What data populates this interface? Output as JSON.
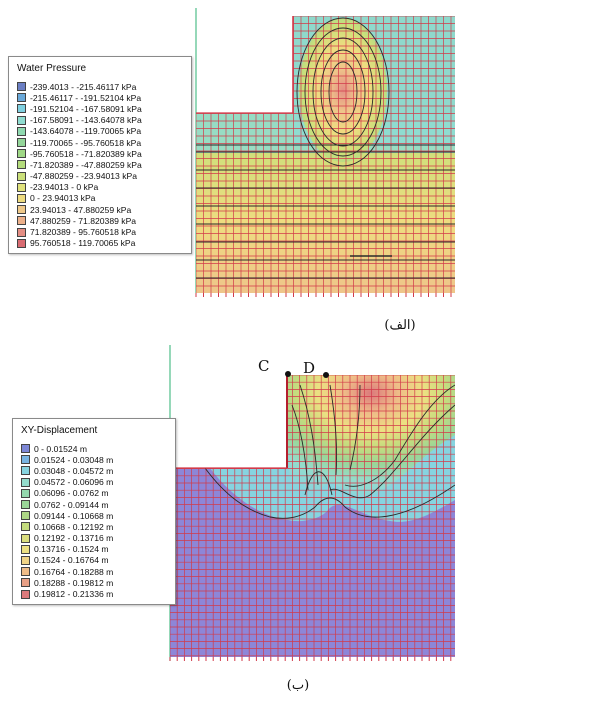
{
  "panel_a": {
    "legend_title": "Water Pressure",
    "legend": [
      {
        "label": "-239.4013 - -215.46117 kPa",
        "color": "#6b7fc4"
      },
      {
        "label": "-215.46117 - -191.52104 kPa",
        "color": "#6aa9da"
      },
      {
        "label": "-191.52104 - -167.58091 kPa",
        "color": "#7fd0e0"
      },
      {
        "label": "-167.58091 - -143.64078 kPa",
        "color": "#8fdcd0"
      },
      {
        "label": "-143.64078 - -119.70065 kPa",
        "color": "#8fd9b0"
      },
      {
        "label": "-119.70065 - -95.760518 kPa",
        "color": "#94d69a"
      },
      {
        "label": "-95.760518 - -71.820389 kPa",
        "color": "#9fd886"
      },
      {
        "label": "-71.820389 - -47.880259 kPa",
        "color": "#b4dc7c"
      },
      {
        "label": "-47.880259 - -23.94013 kPa",
        "color": "#cbe07a"
      },
      {
        "label": "-23.94013 - 0 kPa",
        "color": "#e0e27c"
      },
      {
        "label": "0 - 23.94013 kPa",
        "color": "#eedc80"
      },
      {
        "label": "23.94013 - 47.880259 kPa",
        "color": "#efc98a"
      },
      {
        "label": "47.880259 - 71.820389 kPa",
        "color": "#ecb08a"
      },
      {
        "label": "71.820389 - 95.760518 kPa",
        "color": "#e48e84"
      },
      {
        "label": "95.760518 - 119.70065 kPa",
        "color": "#d96c72"
      }
    ],
    "caption": "(الف)"
  },
  "panel_b": {
    "legend_title": "XY-Displacement",
    "legend": [
      {
        "label": "0 - 0.01524 m",
        "color": "#7d87d6"
      },
      {
        "label": "0.01524 - 0.03048 m",
        "color": "#78b4e2"
      },
      {
        "label": "0.03048 - 0.04572 m",
        "color": "#86d4e0"
      },
      {
        "label": "0.04572 - 0.06096 m",
        "color": "#94dccc"
      },
      {
        "label": "0.06096 - 0.0762 m",
        "color": "#94d8ae"
      },
      {
        "label": "0.0762 - 0.09144 m",
        "color": "#9ad698"
      },
      {
        "label": "0.09144 - 0.10668 m",
        "color": "#aed886"
      },
      {
        "label": "0.10668 - 0.12192 m",
        "color": "#c4dc7e"
      },
      {
        "label": "0.12192 - 0.13716 m",
        "color": "#dade7e"
      },
      {
        "label": "0.13716 - 0.1524 m",
        "color": "#ece082"
      },
      {
        "label": "0.1524 - 0.16764 m",
        "color": "#f0d486"
      },
      {
        "label": "0.16764 - 0.18288 m",
        "color": "#eebc88"
      },
      {
        "label": "0.18288 - 0.19812 m",
        "color": "#e8a086"
      },
      {
        "label": "0.19812 - 0.21336 m",
        "color": "#dc7a7c"
      }
    ],
    "point_c": "C",
    "point_d": "D",
    "caption": "(ب)"
  },
  "colors": {
    "mesh_line": "#d23a4a",
    "contour_line": "#2a2a2a",
    "axis_line": "#4fbf8a",
    "soil_blue": "#8aa7e6",
    "soil_purple": "#8d86d8"
  }
}
